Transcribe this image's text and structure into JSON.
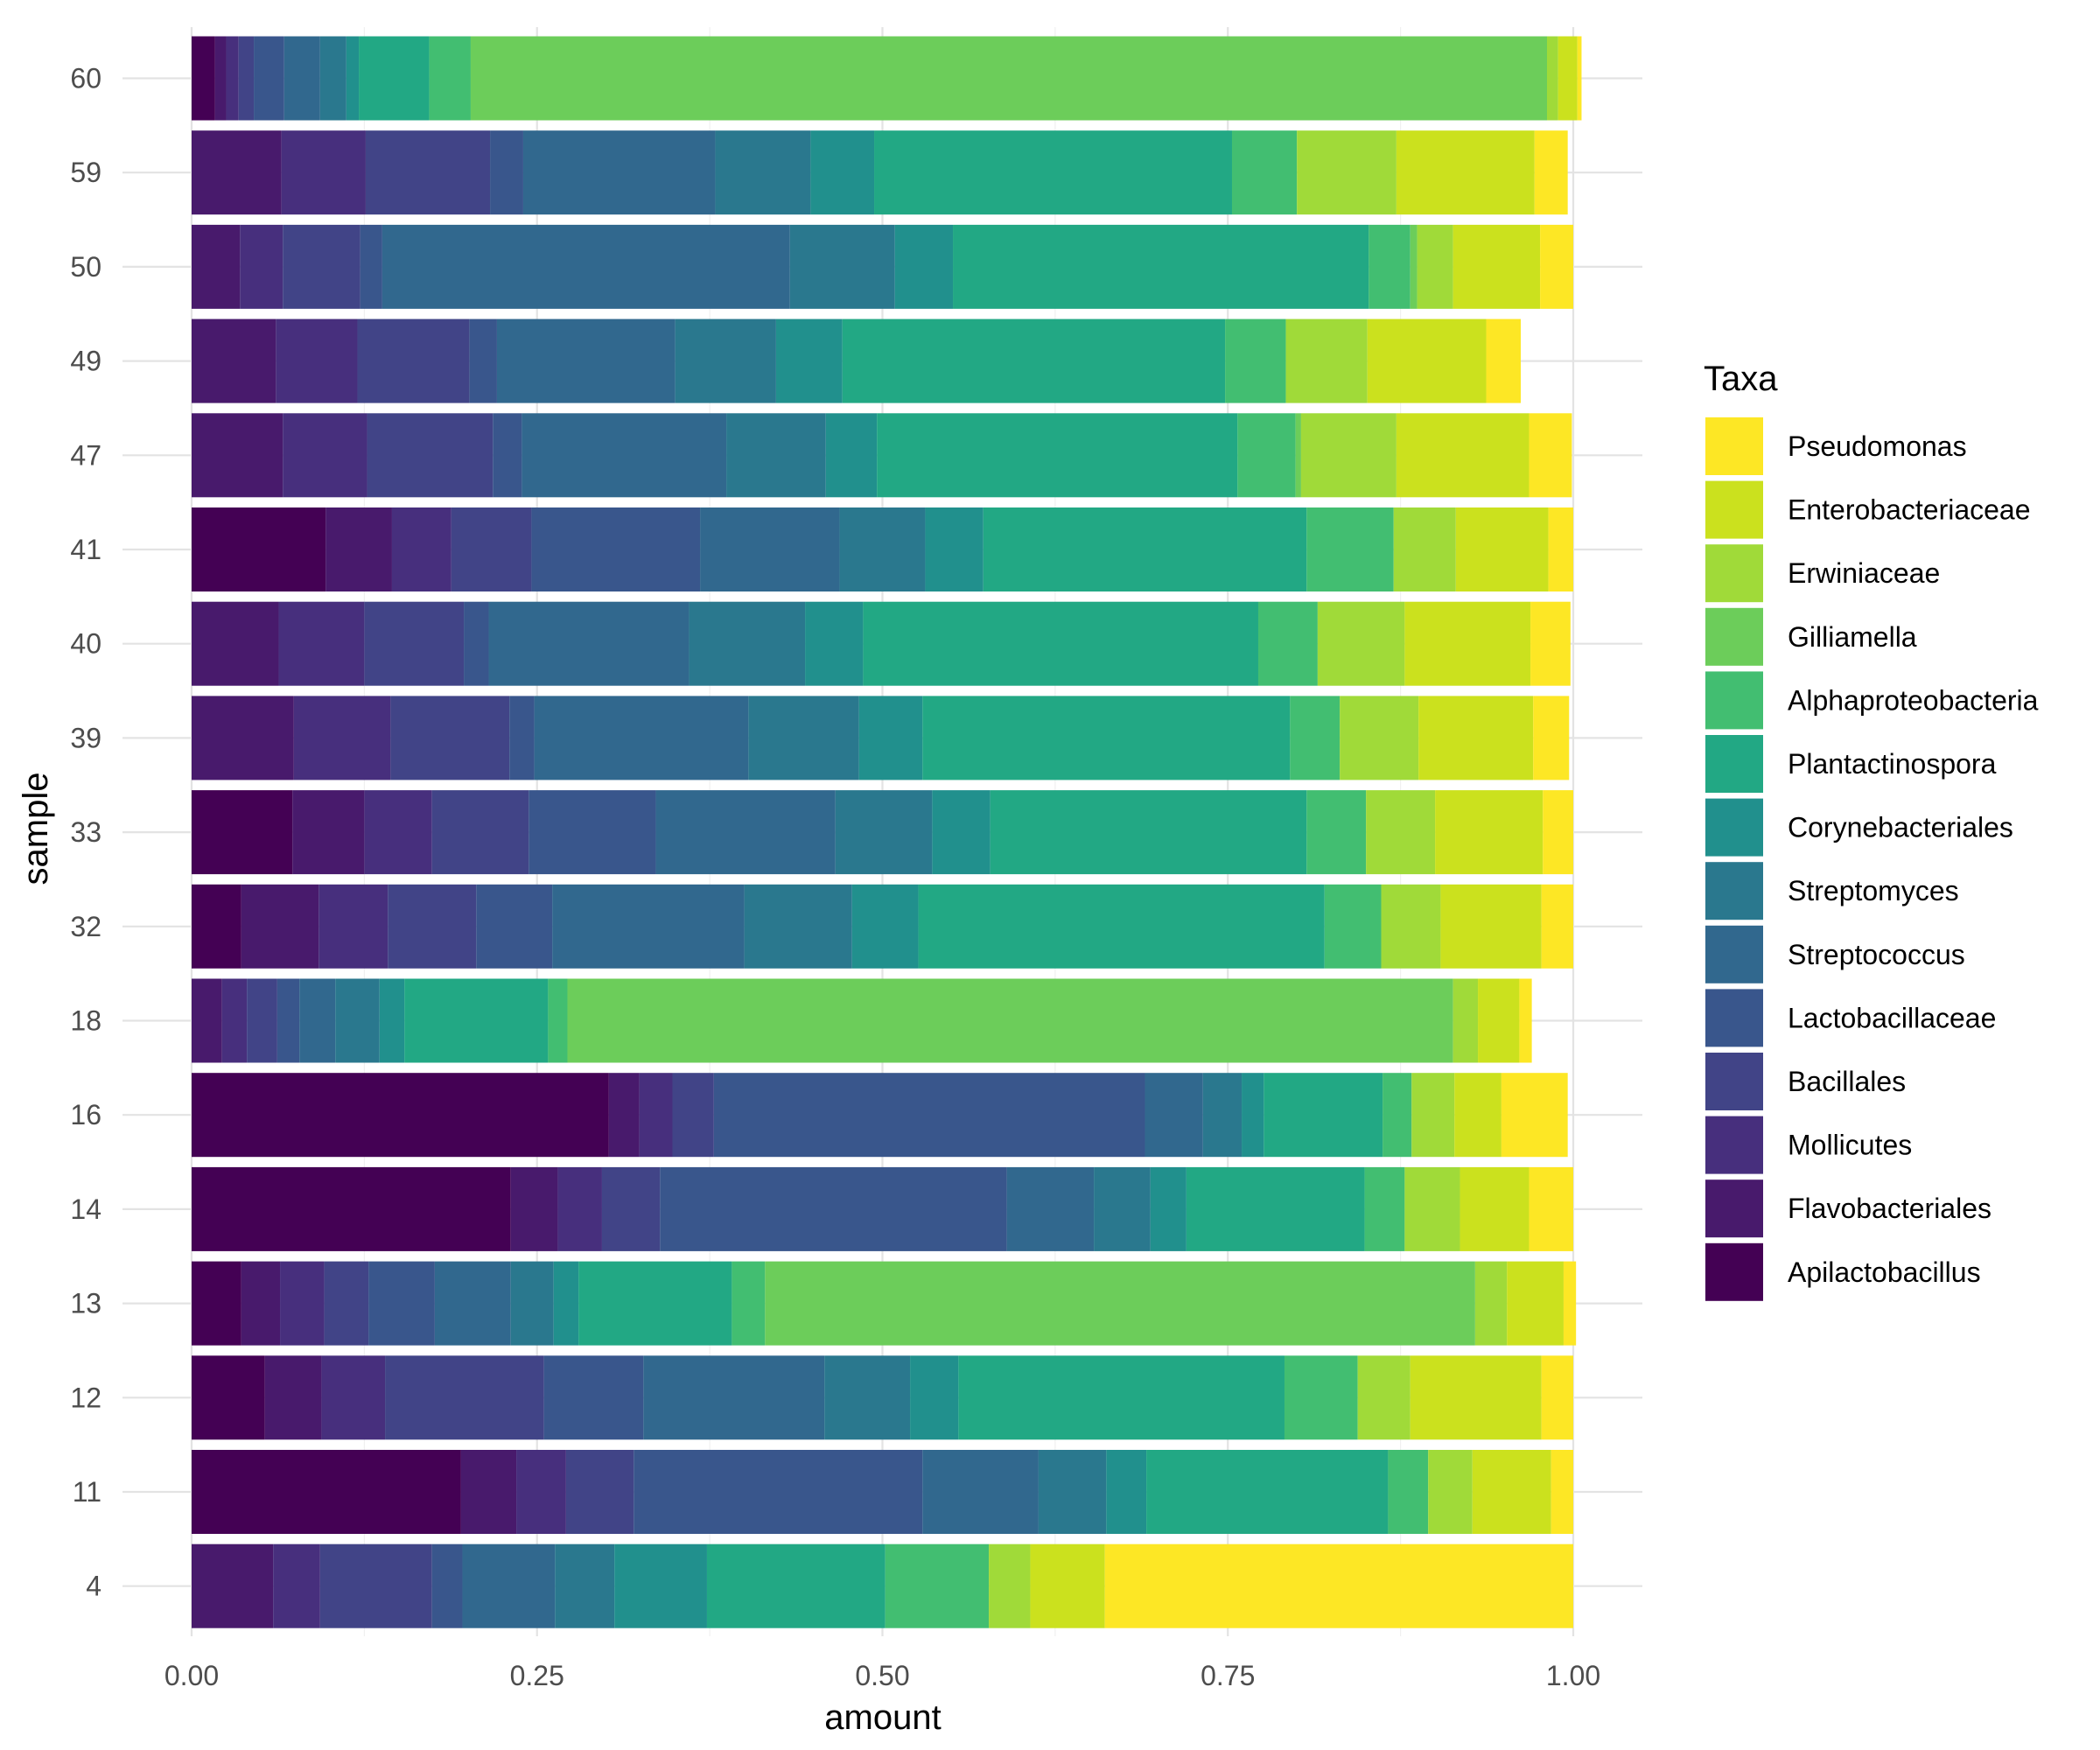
{
  "chart_data": {
    "type": "bar",
    "orientation": "horizontal",
    "stacked": true,
    "xlabel": "amount",
    "ylabel": "sample",
    "xlim": [
      0,
      1
    ],
    "xticks": [
      "0.00",
      "0.25",
      "0.50",
      "0.75",
      "1.00"
    ],
    "grid": true,
    "legend_position": "right",
    "legend_title": "Taxa",
    "categories": [
      "4",
      "11",
      "12",
      "13",
      "14",
      "16",
      "18",
      "32",
      "33",
      "39",
      "40",
      "41",
      "47",
      "49",
      "50",
      "59",
      "60"
    ],
    "series": [
      {
        "name": "Apilactobacillus",
        "color": "#440154",
        "values": [
          0.0,
          0.195,
          0.053,
          0.036,
          0.231,
          0.302,
          0.0,
          0.036,
          0.073,
          0.0,
          0.0,
          0.097,
          0.0,
          0.0,
          0.0,
          0.0,
          0.017
        ]
      },
      {
        "name": "Flavobacteriales",
        "color": "#481A6C",
        "values": [
          0.059,
          0.04,
          0.041,
          0.028,
          0.034,
          0.022,
          0.022,
          0.056,
          0.052,
          0.074,
          0.063,
          0.048,
          0.066,
          0.061,
          0.035,
          0.065,
          0.008
        ]
      },
      {
        "name": "Mollicutes",
        "color": "#472F7D",
        "values": [
          0.034,
          0.036,
          0.046,
          0.032,
          0.032,
          0.024,
          0.018,
          0.05,
          0.049,
          0.07,
          0.062,
          0.043,
          0.061,
          0.059,
          0.031,
          0.061,
          0.009
        ]
      },
      {
        "name": "Bacillales",
        "color": "#414487",
        "values": [
          0.081,
          0.049,
          0.115,
          0.032,
          0.042,
          0.03,
          0.022,
          0.064,
          0.07,
          0.086,
          0.072,
          0.058,
          0.091,
          0.081,
          0.056,
          0.09,
          0.011
        ]
      },
      {
        "name": "Lactobacillaceae",
        "color": "#39568C",
        "values": [
          0.022,
          0.209,
          0.072,
          0.048,
          0.251,
          0.312,
          0.016,
          0.055,
          0.092,
          0.018,
          0.018,
          0.122,
          0.021,
          0.02,
          0.016,
          0.024,
          0.022
        ]
      },
      {
        "name": "Streptococcus",
        "color": "#31688E",
        "values": [
          0.067,
          0.084,
          0.131,
          0.055,
          0.063,
          0.042,
          0.026,
          0.139,
          0.13,
          0.155,
          0.145,
          0.101,
          0.148,
          0.129,
          0.295,
          0.139,
          0.026
        ]
      },
      {
        "name": "Streptomyces",
        "color": "#2A788E",
        "values": [
          0.043,
          0.049,
          0.062,
          0.031,
          0.041,
          0.028,
          0.032,
          0.078,
          0.07,
          0.08,
          0.084,
          0.062,
          0.072,
          0.073,
          0.076,
          0.069,
          0.019
        ]
      },
      {
        "name": "Corynebacteriales",
        "color": "#21908D",
        "values": [
          0.067,
          0.029,
          0.035,
          0.018,
          0.026,
          0.016,
          0.018,
          0.048,
          0.042,
          0.046,
          0.042,
          0.042,
          0.037,
          0.048,
          0.042,
          0.046,
          0.009
        ]
      },
      {
        "name": "Plantactinospora",
        "color": "#22A884",
        "values": [
          0.129,
          0.175,
          0.236,
          0.111,
          0.129,
          0.086,
          0.104,
          0.294,
          0.229,
          0.266,
          0.286,
          0.234,
          0.261,
          0.277,
          0.301,
          0.259,
          0.051
        ]
      },
      {
        "name": "Alphaproteobacteria",
        "color": "#42BE71",
        "values": [
          0.075,
          0.029,
          0.053,
          0.024,
          0.029,
          0.021,
          0.014,
          0.041,
          0.043,
          0.036,
          0.043,
          0.063,
          0.042,
          0.044,
          0.03,
          0.047,
          0.03
        ]
      },
      {
        "name": "Gilliamella",
        "color": "#6CCD5A",
        "values": [
          0.0,
          0.0,
          0.0,
          0.514,
          0.0,
          0.0,
          0.641,
          0.0,
          0.0,
          0.0,
          0.0,
          0.0,
          0.004,
          0.0,
          0.005,
          0.0,
          0.779
        ]
      },
      {
        "name": "Erwiniaceae",
        "color": "#A0DA39",
        "values": [
          0.03,
          0.032,
          0.038,
          0.023,
          0.04,
          0.031,
          0.018,
          0.043,
          0.05,
          0.057,
          0.063,
          0.045,
          0.069,
          0.059,
          0.026,
          0.072,
          0.008
        ]
      },
      {
        "name": "Enterobacteriaceae",
        "color": "#CBE11E",
        "values": [
          0.054,
          0.057,
          0.095,
          0.041,
          0.05,
          0.034,
          0.03,
          0.073,
          0.078,
          0.083,
          0.091,
          0.067,
          0.096,
          0.086,
          0.063,
          0.1,
          0.014
        ]
      },
      {
        "name": "Pseudomonas",
        "color": "#FDE725",
        "values": [
          0.339,
          0.016,
          0.023,
          0.009,
          0.032,
          0.048,
          0.009,
          0.023,
          0.022,
          0.026,
          0.029,
          0.018,
          0.031,
          0.025,
          0.024,
          0.024,
          0.003
        ]
      }
    ]
  }
}
